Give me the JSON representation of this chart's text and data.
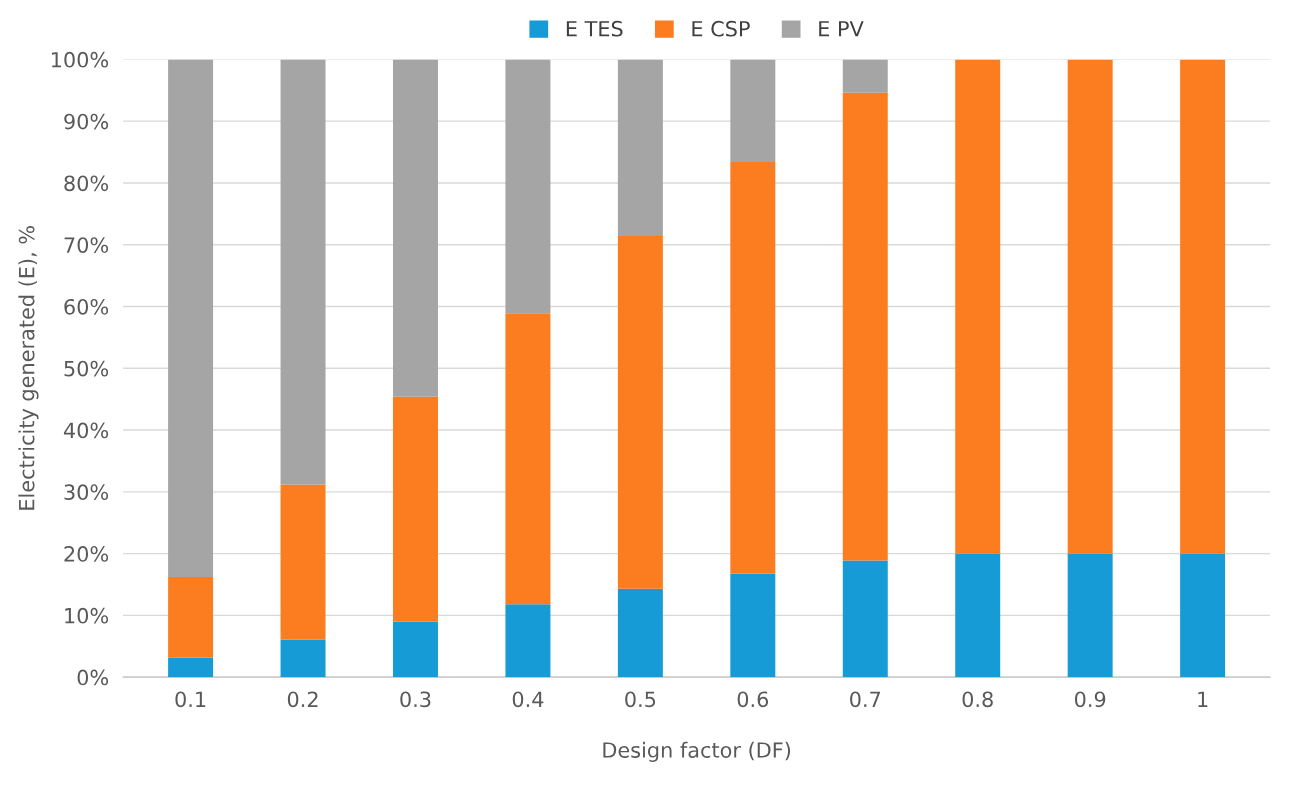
{
  "chart_data": {
    "type": "bar",
    "stacked": true,
    "xlabel": "Design factor (DF)",
    "ylabel": "Electricity generated (E), %",
    "categories": [
      "0.1",
      "0.2",
      "0.3",
      "0.4",
      "0.5",
      "0.6",
      "0.7",
      "0.8",
      "0.9",
      "1"
    ],
    "series": [
      {
        "name": "E TES",
        "color": "#179bd7",
        "values": [
          3.2,
          6.1,
          9.0,
          11.8,
          14.3,
          16.8,
          18.9,
          20,
          20,
          20
        ]
      },
      {
        "name": "E CSP",
        "color": "#fb7d20",
        "values": [
          13.0,
          25.1,
          36.4,
          47.1,
          57.1,
          66.6,
          75.7,
          80,
          80,
          80
        ]
      },
      {
        "name": "E PV",
        "color": "#a5a5a5",
        "values": [
          83.8,
          68.8,
          54.6,
          41.1,
          28.6,
          16.6,
          5.4,
          0,
          0,
          0
        ]
      }
    ],
    "ylim": [
      0,
      100
    ],
    "yticks": [
      {
        "value": 0,
        "label": "0%"
      },
      {
        "value": 10,
        "label": "10%"
      },
      {
        "value": 20,
        "label": "20%"
      },
      {
        "value": 30,
        "label": "30%"
      },
      {
        "value": 40,
        "label": "40%"
      },
      {
        "value": 50,
        "label": "50%"
      },
      {
        "value": 60,
        "label": "60%"
      },
      {
        "value": 70,
        "label": "70%"
      },
      {
        "value": 80,
        "label": "80%"
      },
      {
        "value": 90,
        "label": "90%"
      },
      {
        "value": 100,
        "label": "100%"
      }
    ],
    "grid": "y",
    "legend": "top"
  }
}
